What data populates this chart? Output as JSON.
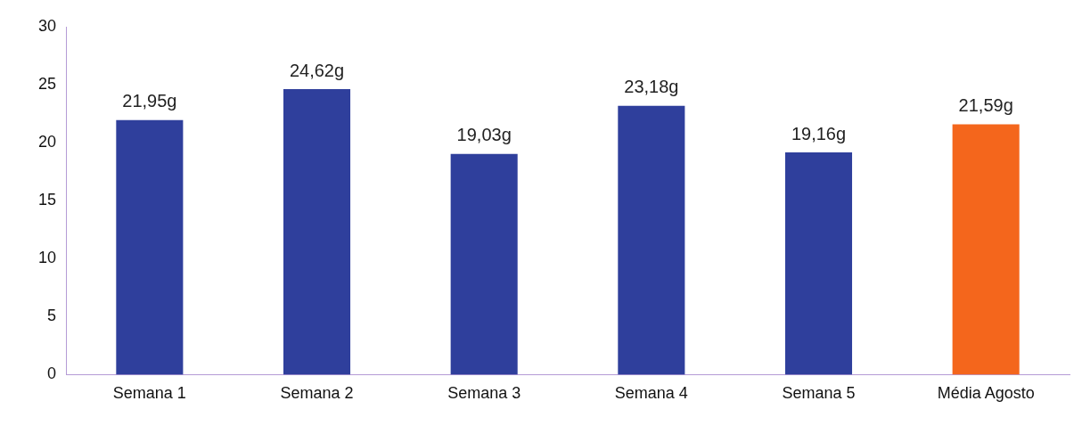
{
  "chart_data": {
    "type": "bar",
    "categories": [
      "Semana 1",
      "Semana 2",
      "Semana 3",
      "Semana 4",
      "Semana 5",
      "Média Agosto"
    ],
    "values": [
      21.95,
      24.62,
      19.03,
      23.18,
      19.16,
      21.59
    ],
    "colors": [
      "#2f3f9c",
      "#2f3f9c",
      "#2f3f9c",
      "#2f3f9c",
      "#2f3f9c",
      "#f4661c"
    ],
    "value_labels": [
      "21,95g",
      "24,62g",
      "19,03g",
      "23,18g",
      "19,16g",
      "21,59g"
    ],
    "ylim": [
      0,
      30
    ],
    "yticks": [
      0,
      5,
      10,
      15,
      20,
      25,
      30
    ],
    "grid": false,
    "legend": false
  }
}
